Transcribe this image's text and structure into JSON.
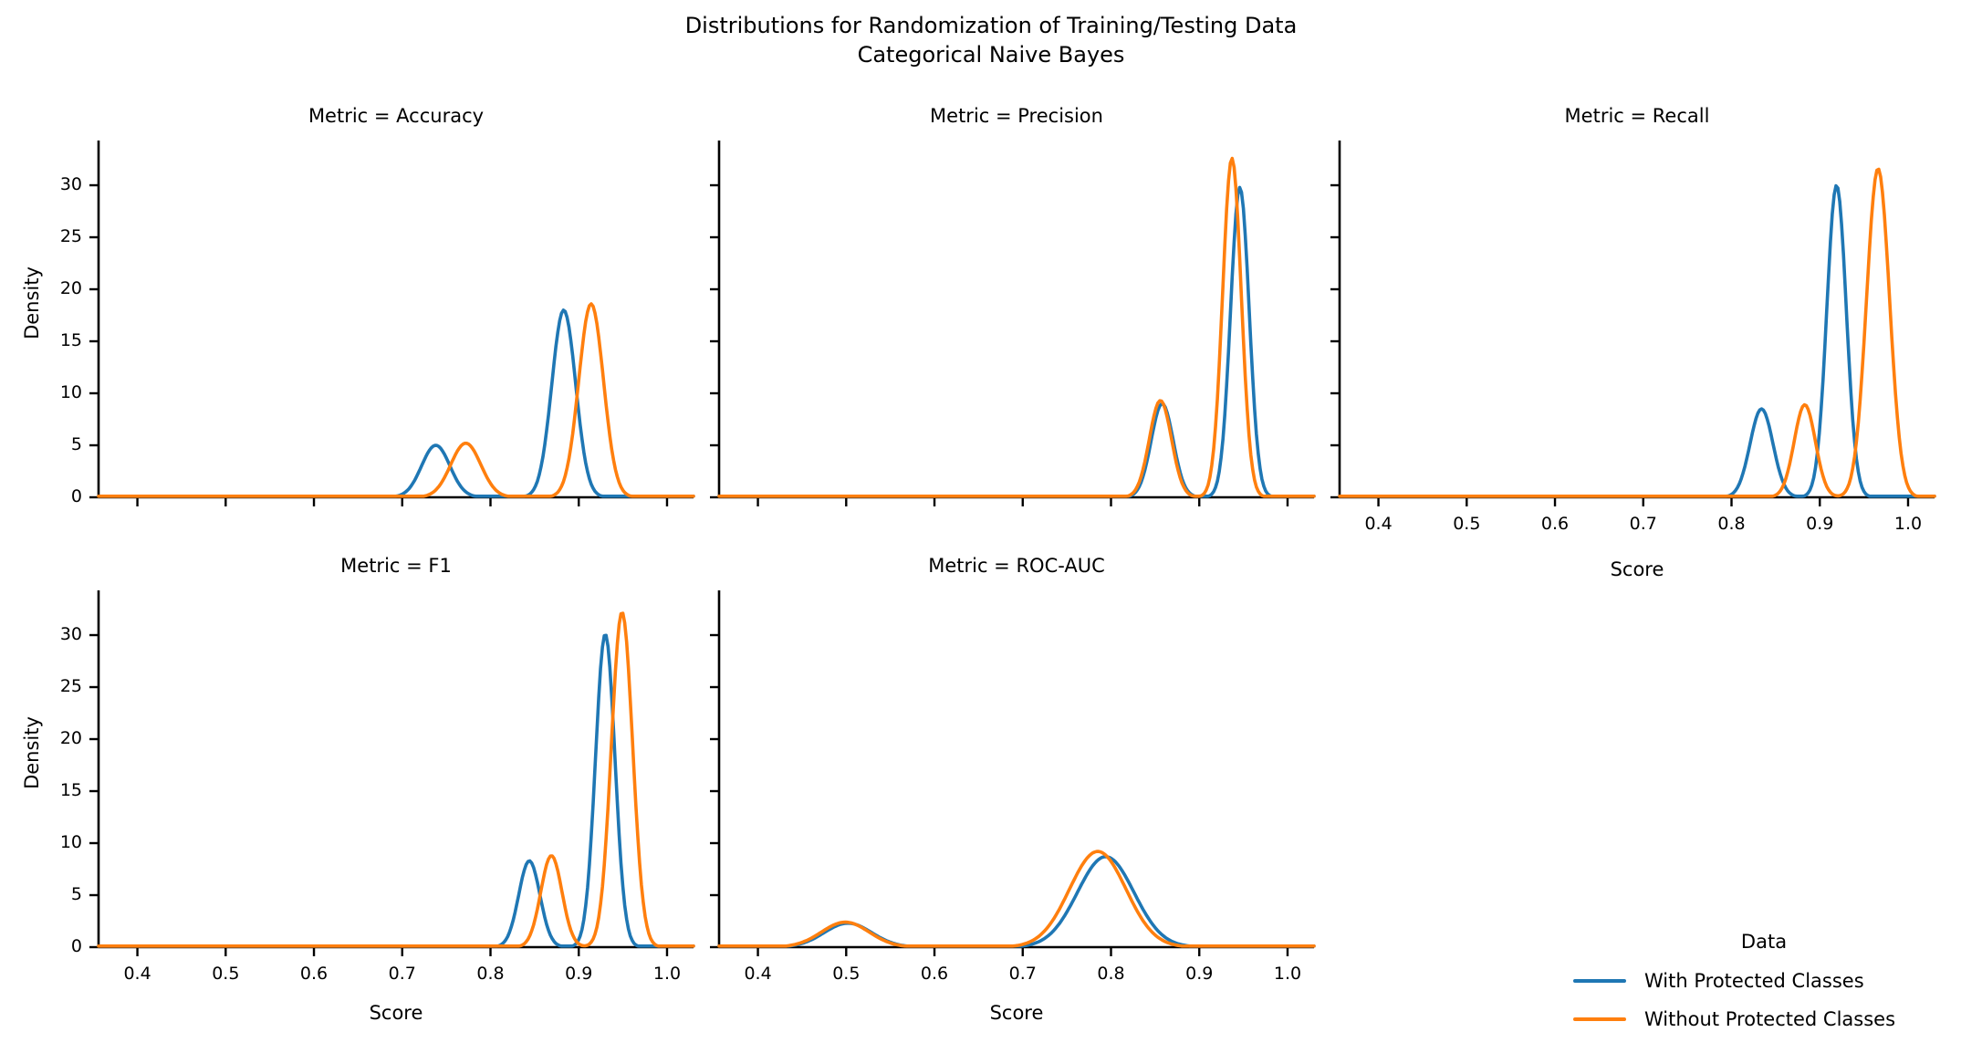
{
  "figure": {
    "title_line1": "Distributions for Randomization of Training/Testing Data",
    "title_line2": "Categorical Naive Bayes"
  },
  "colors": {
    "with_protected": "#1f77b4",
    "without_protected": "#ff7f0e",
    "axis": "#000000",
    "background": "#ffffff"
  },
  "axes": {
    "xlabel": "Score",
    "ylabel": "Density",
    "x_ticks": [
      0.4,
      0.5,
      0.6,
      0.7,
      0.8,
      0.9,
      1.0
    ],
    "y_ticks": [
      0,
      5,
      10,
      15,
      20,
      25,
      30
    ],
    "xlim": [
      0.356,
      1.03
    ],
    "ylim": [
      0,
      34.3
    ],
    "grid": false
  },
  "legend": {
    "title": "Data",
    "position": "lower right",
    "entries": [
      {
        "label": "With Protected Classes",
        "color": "#1f77b4"
      },
      {
        "label": "Without Protected Classes",
        "color": "#ff7f0e"
      }
    ]
  },
  "chart_data": [
    {
      "type": "kde",
      "facet": "Metric = Accuracy",
      "series": [
        {
          "name": "With Protected Classes",
          "color": "#1f77b4",
          "components": [
            {
              "mean": 0.738,
              "sd": 0.016,
              "peak": 5.0
            },
            {
              "mean": 0.883,
              "sd": 0.0135,
              "peak": 18.0
            }
          ]
        },
        {
          "name": "Without Protected Classes",
          "color": "#ff7f0e",
          "components": [
            {
              "mean": 0.772,
              "sd": 0.017,
              "peak": 5.2
            },
            {
              "mean": 0.914,
              "sd": 0.014,
              "peak": 18.6
            }
          ]
        }
      ]
    },
    {
      "type": "kde",
      "facet": "Metric = Precision",
      "series": [
        {
          "name": "With Protected Classes",
          "color": "#1f77b4",
          "components": [
            {
              "mean": 0.858,
              "sd": 0.0125,
              "peak": 9.0
            },
            {
              "mean": 0.946,
              "sd": 0.0105,
              "peak": 29.8
            }
          ]
        },
        {
          "name": "Without Protected Classes",
          "color": "#ff7f0e",
          "components": [
            {
              "mean": 0.856,
              "sd": 0.0125,
              "peak": 9.3
            },
            {
              "mean": 0.937,
              "sd": 0.0105,
              "peak": 32.6
            }
          ]
        }
      ]
    },
    {
      "type": "kde",
      "facet": "Metric = Recall",
      "series": [
        {
          "name": "With Protected Classes",
          "color": "#1f77b4",
          "components": [
            {
              "mean": 0.834,
              "sd": 0.013,
              "peak": 8.5
            },
            {
              "mean": 0.919,
              "sd": 0.011,
              "peak": 30.0
            }
          ]
        },
        {
          "name": "Without Protected Classes",
          "color": "#ff7f0e",
          "components": [
            {
              "mean": 0.883,
              "sd": 0.012,
              "peak": 8.9
            },
            {
              "mean": 0.966,
              "sd": 0.013,
              "peak": 31.6
            }
          ]
        }
      ]
    },
    {
      "type": "kde",
      "facet": "Metric = F1",
      "series": [
        {
          "name": "With Protected Classes",
          "color": "#1f77b4",
          "components": [
            {
              "mean": 0.844,
              "sd": 0.012,
              "peak": 8.3
            },
            {
              "mean": 0.93,
              "sd": 0.011,
              "peak": 30.1
            }
          ]
        },
        {
          "name": "Without Protected Classes",
          "color": "#ff7f0e",
          "components": [
            {
              "mean": 0.869,
              "sd": 0.012,
              "peak": 8.8
            },
            {
              "mean": 0.949,
              "sd": 0.012,
              "peak": 32.2
            }
          ]
        }
      ]
    },
    {
      "type": "kde",
      "facet": "Metric = ROC-AUC",
      "series": [
        {
          "name": "With Protected Classes",
          "color": "#1f77b4",
          "components": [
            {
              "mean": 0.502,
              "sd": 0.027,
              "peak": 2.3
            },
            {
              "mean": 0.794,
              "sd": 0.032,
              "peak": 8.7
            }
          ]
        },
        {
          "name": "Without Protected Classes",
          "color": "#ff7f0e",
          "components": [
            {
              "mean": 0.499,
              "sd": 0.027,
              "peak": 2.4
            },
            {
              "mean": 0.785,
              "sd": 0.032,
              "peak": 9.2
            }
          ]
        }
      ]
    }
  ]
}
